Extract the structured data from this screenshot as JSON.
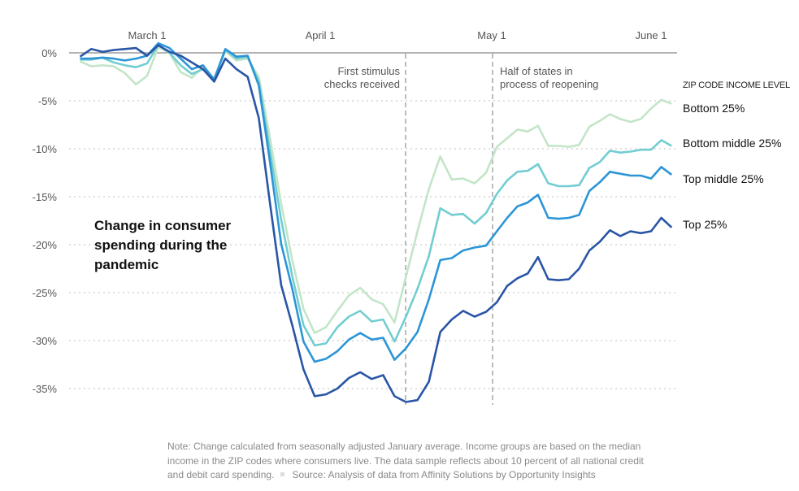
{
  "chart_data": {
    "type": "line",
    "title": "Change in consumer spending during the pandemic",
    "ylabel": "",
    "xlabel": "",
    "ylim": [
      -35,
      0
    ],
    "y_ticks": [
      "0%",
      "-5%",
      "-10%",
      "-15%",
      "-20%",
      "-25%",
      "-30%",
      "-35%"
    ],
    "y_tick_values": [
      0,
      -5,
      -10,
      -15,
      -20,
      -25,
      -30,
      -35
    ],
    "x_ticks": [
      {
        "label": "March 1",
        "date": "2020-03-01"
      },
      {
        "label": "April 1",
        "date": "2020-04-01"
      },
      {
        "label": "May 1",
        "date": "2020-05-01"
      },
      {
        "label": "June 1",
        "date": "2020-06-01"
      }
    ],
    "grid": "horizontal dotted",
    "legend_title": "ZIP CODE INCOME LEVEL",
    "legend_placement": "right, labels at line ends",
    "annotations": [
      {
        "date": "2020-04-16",
        "lines": [
          "First stimulus",
          "checks received"
        ]
      },
      {
        "date": "2020-05-01",
        "lines": [
          "Half of states in",
          "process of reopening"
        ]
      }
    ],
    "x": [
      "2020-02-18",
      "2020-02-20",
      "2020-02-22",
      "2020-02-24",
      "2020-02-26",
      "2020-02-28",
      "2020-03-01",
      "2020-03-03",
      "2020-03-05",
      "2020-03-07",
      "2020-03-09",
      "2020-03-11",
      "2020-03-13",
      "2020-03-15",
      "2020-03-17",
      "2020-03-19",
      "2020-03-21",
      "2020-03-23",
      "2020-03-25",
      "2020-03-27",
      "2020-03-29",
      "2020-03-31",
      "2020-04-02",
      "2020-04-04",
      "2020-04-06",
      "2020-04-08",
      "2020-04-10",
      "2020-04-12",
      "2020-04-14",
      "2020-04-16",
      "2020-04-18",
      "2020-04-20",
      "2020-04-22",
      "2020-04-24",
      "2020-04-26",
      "2020-04-28",
      "2020-04-30",
      "2020-05-02",
      "2020-05-04",
      "2020-05-06",
      "2020-05-08",
      "2020-05-10",
      "2020-05-12",
      "2020-05-14",
      "2020-05-16",
      "2020-05-18",
      "2020-05-20",
      "2020-05-22",
      "2020-05-24",
      "2020-05-26",
      "2020-05-28",
      "2020-05-30",
      "2020-06-01",
      "2020-06-03",
      "2020-06-05"
    ],
    "series": [
      {
        "name": "Bottom 25%",
        "color": "#c3e5c8",
        "values": [
          -0.9,
          -1.4,
          -1.3,
          -1.4,
          -2.1,
          -3.3,
          -2.4,
          0.6,
          0.0,
          -2.0,
          -2.6,
          -1.5,
          -2.7,
          0.2,
          -0.8,
          -0.6,
          -2.5,
          -8.9,
          -15.7,
          -21.6,
          -26.7,
          -29.2,
          -28.6,
          -26.9,
          -25.3,
          -24.5,
          -25.7,
          -26.2,
          -28.1,
          -23.3,
          -18.6,
          -14.2,
          -10.8,
          -13.2,
          -13.1,
          -13.6,
          -12.5,
          -9.8,
          -8.9,
          -8.0,
          -8.2,
          -7.6,
          -9.7,
          -9.7,
          -9.8,
          -9.6,
          -7.7,
          -7.1,
          -6.4,
          -6.9,
          -7.2,
          -6.9,
          -5.8,
          -4.9,
          -5.3
        ]
      },
      {
        "name": "Bottom middle 25%",
        "color": "#72cdd1",
        "values": [
          -0.7,
          -0.7,
          -0.5,
          -1.0,
          -1.3,
          -1.5,
          -1.1,
          0.8,
          0.0,
          -1.3,
          -2.2,
          -1.7,
          -2.7,
          0.3,
          -0.6,
          -0.4,
          -3.0,
          -10.2,
          -17.4,
          -23.3,
          -28.4,
          -30.5,
          -30.3,
          -28.6,
          -27.5,
          -26.9,
          -28.0,
          -27.8,
          -30.1,
          -27.5,
          -24.6,
          -21.2,
          -16.2,
          -16.9,
          -16.8,
          -17.8,
          -16.7,
          -14.7,
          -13.3,
          -12.4,
          -12.3,
          -11.6,
          -13.6,
          -13.9,
          -13.9,
          -13.8,
          -12.0,
          -11.4,
          -10.2,
          -10.4,
          -10.3,
          -10.1,
          -10.1,
          -9.1,
          -9.7
        ]
      },
      {
        "name": "Top middle 25%",
        "color": "#2c95d6",
        "values": [
          -0.6,
          -0.6,
          -0.5,
          -0.6,
          -0.8,
          -0.6,
          -0.3,
          1.0,
          0.5,
          -0.6,
          -1.7,
          -1.3,
          -2.8,
          0.4,
          -0.4,
          -0.3,
          -3.4,
          -11.4,
          -19.9,
          -24.6,
          -30.1,
          -32.2,
          -31.9,
          -31.1,
          -29.9,
          -29.2,
          -29.9,
          -29.7,
          -32.0,
          -30.8,
          -29.1,
          -25.7,
          -21.6,
          -21.4,
          -20.6,
          -20.3,
          -20.1,
          -18.6,
          -17.2,
          -16.0,
          -15.6,
          -14.8,
          -17.2,
          -17.3,
          -17.2,
          -16.9,
          -14.4,
          -13.5,
          -12.4,
          -12.6,
          -12.8,
          -12.8,
          -13.1,
          -11.9,
          -12.7
        ]
      },
      {
        "name": "Top 25%",
        "color": "#2955a6",
        "values": [
          -0.4,
          0.4,
          0.1,
          0.3,
          0.4,
          0.5,
          -0.3,
          0.8,
          0.1,
          -0.3,
          -1.0,
          -1.7,
          -3.0,
          -0.6,
          -1.7,
          -2.5,
          -6.8,
          -15.7,
          -24.2,
          -28.4,
          -33.0,
          -35.8,
          -35.6,
          -35.0,
          -33.9,
          -33.3,
          -34.0,
          -33.6,
          -35.8,
          -36.4,
          -36.2,
          -34.3,
          -29.1,
          -27.8,
          -26.9,
          -27.5,
          -27.0,
          -26.0,
          -24.3,
          -23.5,
          -23.0,
          -21.3,
          -23.6,
          -23.7,
          -23.6,
          -22.5,
          -20.6,
          -19.7,
          -18.5,
          -19.1,
          -18.6,
          -18.8,
          -18.6,
          -17.2,
          -18.2
        ]
      }
    ]
  },
  "note": "Note: Change calculated from seasonally adjusted January average. Income groups are based on the median income in the ZIP codes where consumers live. The data sample reflects about 10 percent of all national credit and debit card spending.",
  "source": "Source: Analysis of data from Affinity Solutions by Opportunity Insights"
}
